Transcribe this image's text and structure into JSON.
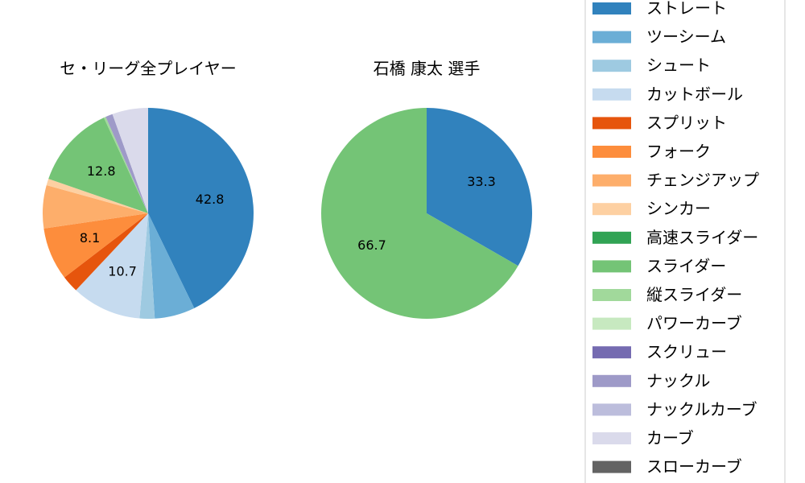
{
  "chart_data": [
    {
      "type": "pie",
      "title": "セ・リーグ全プレイヤー",
      "labels": [
        "ストレート",
        "ツーシーム",
        "シュート",
        "カットボール",
        "スプリット",
        "フォーク",
        "チェンジアップ",
        "シンカー",
        "高速スライダー",
        "スライダー",
        "縦スライダー",
        "パワーカーブ",
        "スクリュー",
        "ナックル",
        "ナックルカーブ",
        "カーブ",
        "スローカーブ"
      ],
      "values": [
        42.8,
        6.2,
        2.3,
        10.7,
        2.6,
        8.1,
        6.6,
        1.0,
        0.0,
        12.8,
        0.3,
        0.0,
        0.0,
        1.1,
        0.0,
        5.5,
        0.0
      ],
      "data_labels": [
        "42.8",
        "",
        "",
        "10.7",
        "",
        "8.1",
        "",
        "",
        "",
        "12.8",
        "",
        "",
        "",
        "",
        "",
        "",
        ""
      ]
    },
    {
      "type": "pie",
      "title": "石橋 康太  選手",
      "labels": [
        "ストレート",
        "スライダー"
      ],
      "values": [
        33.3,
        66.7
      ],
      "data_labels": [
        "33.3",
        "66.7"
      ]
    }
  ],
  "legend": {
    "placement": "right",
    "items": [
      {
        "label": "ストレート",
        "color": "#3182bd"
      },
      {
        "label": "ツーシーム",
        "color": "#6baed6"
      },
      {
        "label": "シュート",
        "color": "#9ecae1"
      },
      {
        "label": "カットボール",
        "color": "#c6dbef"
      },
      {
        "label": "スプリット",
        "color": "#e6550d"
      },
      {
        "label": "フォーク",
        "color": "#fd8d3c"
      },
      {
        "label": "チェンジアップ",
        "color": "#fdae6b"
      },
      {
        "label": "シンカー",
        "color": "#fdd0a2"
      },
      {
        "label": "高速スライダー",
        "color": "#31a354"
      },
      {
        "label": "スライダー",
        "color": "#74c476"
      },
      {
        "label": "縦スライダー",
        "color": "#a1d99b"
      },
      {
        "label": "パワーカーブ",
        "color": "#c7e9c0"
      },
      {
        "label": "スクリュー",
        "color": "#756bb1"
      },
      {
        "label": "ナックル",
        "color": "#9e9ac8"
      },
      {
        "label": "ナックルカーブ",
        "color": "#bcbddc"
      },
      {
        "label": "カーブ",
        "color": "#dadaeb"
      },
      {
        "label": "スローカーブ",
        "color": "#636363"
      }
    ]
  }
}
